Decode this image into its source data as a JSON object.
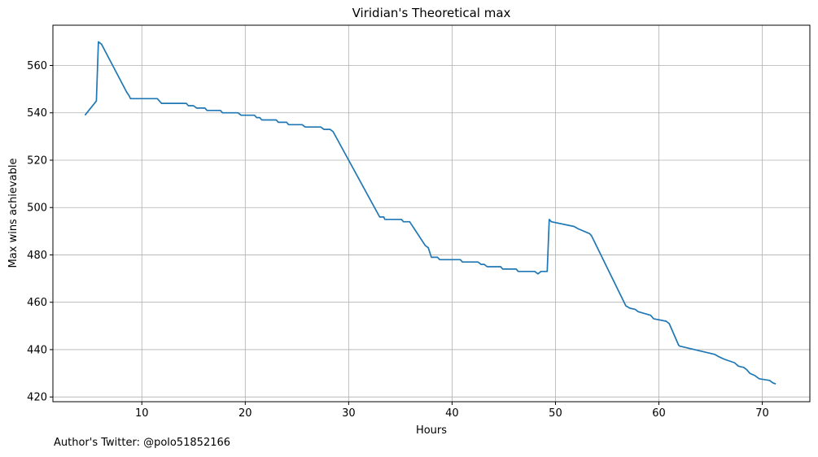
{
  "chart_data": {
    "type": "line",
    "title": "Viridian's Theoretical max",
    "xlabel": "Hours",
    "ylabel": "Max wins achievable",
    "xlim": [
      1.4,
      74.6
    ],
    "ylim": [
      418,
      577
    ],
    "xticks": [
      10,
      20,
      30,
      40,
      50,
      60,
      70
    ],
    "yticks": [
      420,
      440,
      460,
      480,
      500,
      520,
      540,
      560
    ],
    "grid": true,
    "line_color": "#1f77b4",
    "series": [
      {
        "x": [
          4.5,
          5.6,
          5.8,
          6.1,
          8.5,
          8.8,
          8.9,
          11.5,
          11.9,
          14.3,
          14.5,
          15.0,
          15.3,
          16.1,
          16.3,
          17.6,
          17.8,
          19.3,
          19.6,
          20.9,
          21.1,
          21.4,
          21.6,
          23.0,
          23.2,
          24.0,
          24.2,
          25.5,
          25.8,
          27.3,
          27.6,
          28.2,
          28.5,
          33.0,
          33.4,
          33.5,
          35.1,
          35.3,
          35.9,
          37.4,
          37.7,
          38.0,
          38.6,
          38.8,
          40.8,
          41.0,
          42.5,
          42.8,
          43.1,
          43.4,
          44.7,
          44.9,
          46.2,
          46.4,
          48.0,
          48.3,
          48.6,
          49.2,
          49.4,
          49.6,
          51.8,
          52.2,
          53.3,
          53.5,
          56.8,
          57.2,
          57.7,
          58.0,
          59.2,
          59.5,
          60.7,
          61.0,
          61.9,
          62.0,
          65.4,
          65.8,
          66.3,
          66.6,
          67.3,
          67.7,
          68.2,
          68.5,
          68.8,
          69.3,
          69.7,
          70.7,
          71.0,
          71.3
        ],
        "y": [
          539,
          545,
          570,
          569,
          549,
          547,
          546,
          546,
          544,
          544,
          543,
          543,
          542,
          542,
          541,
          541,
          540,
          540,
          539,
          539,
          538,
          538,
          537,
          537,
          536,
          536,
          535,
          535,
          534,
          534,
          533,
          533,
          532,
          496,
          496,
          495,
          495,
          494,
          494,
          484,
          483,
          479,
          479,
          478,
          478,
          477,
          477,
          476,
          476,
          475,
          475,
          474,
          474,
          473,
          473,
          472,
          473,
          473,
          495,
          494,
          492,
          491,
          489,
          488,
          458.5,
          457.5,
          457,
          456,
          454.5,
          453,
          452,
          451,
          442,
          441.5,
          438,
          437,
          436,
          435.5,
          434.5,
          433,
          432.5,
          431.5,
          430,
          429,
          427.7,
          427,
          426,
          425.5
        ]
      }
    ],
    "annotation": "Author's Twitter: @polo51852166"
  }
}
